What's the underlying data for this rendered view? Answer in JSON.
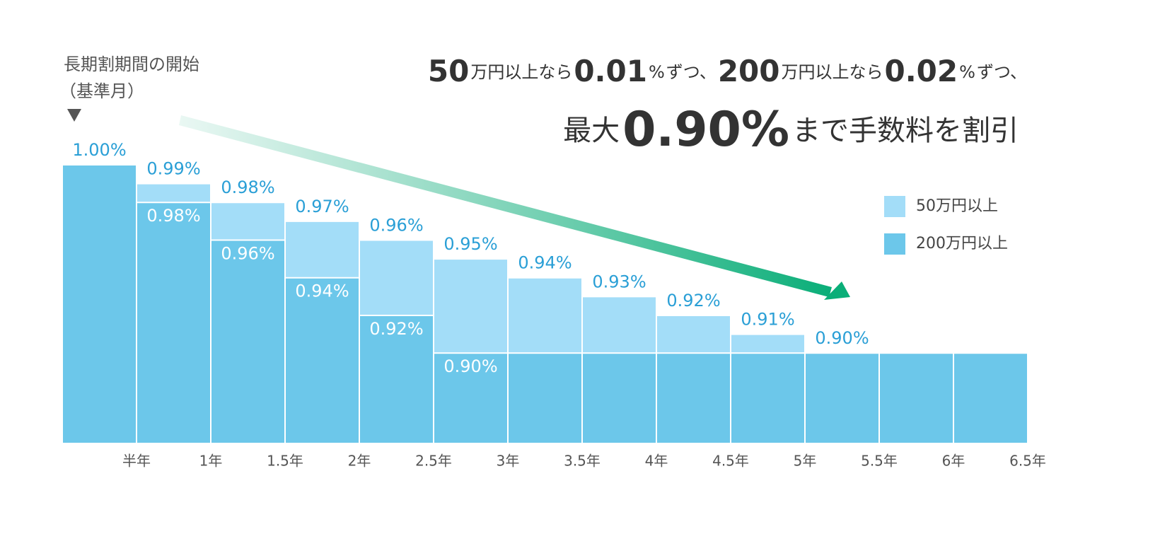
{
  "chart_data": {
    "type": "bar",
    "headline": [
      "50",
      "万円以上なら",
      "0.01",
      "%",
      "ずつ、",
      "200",
      "万円以上なら",
      "0.02",
      "%",
      "ずつ、"
    ],
    "subheadline": [
      "最大",
      "0.90%",
      "まで手数料を割引"
    ],
    "annotation": [
      "長期割期間の開始",
      "（基準月）"
    ],
    "categories": [
      "半年",
      "1年",
      "1.5年",
      "2年",
      "2.5年",
      "3年",
      "3.5年",
      "4年",
      "4.5年",
      "5年",
      "5.5年",
      "6年",
      "6.5年"
    ],
    "series": [
      {
        "name": "50万円以上",
        "color": "#a3ddf8",
        "values": [
          1.0,
          0.99,
          0.98,
          0.97,
          0.96,
          0.95,
          0.94,
          0.93,
          0.92,
          0.91,
          0.9,
          0.9,
          0.9
        ],
        "value_labels": [
          "1.00%",
          "0.99%",
          "0.98%",
          "0.97%",
          "0.96%",
          "0.95%",
          "0.94%",
          "0.93%",
          "0.92%",
          "0.91%",
          "0.90%",
          null,
          null
        ]
      },
      {
        "name": "200万円以上",
        "color": "#6cc7ea",
        "values": [
          1.0,
          0.98,
          0.96,
          0.94,
          0.92,
          0.9,
          0.9,
          0.9,
          0.9,
          0.9,
          0.9,
          0.9,
          0.9
        ],
        "value_labels": [
          null,
          "0.98%",
          "0.96%",
          "0.94%",
          "0.92%",
          "0.90%",
          null,
          null,
          null,
          null,
          null,
          null,
          null
        ]
      }
    ],
    "ylim": [
      0.852,
      1.0
    ]
  }
}
